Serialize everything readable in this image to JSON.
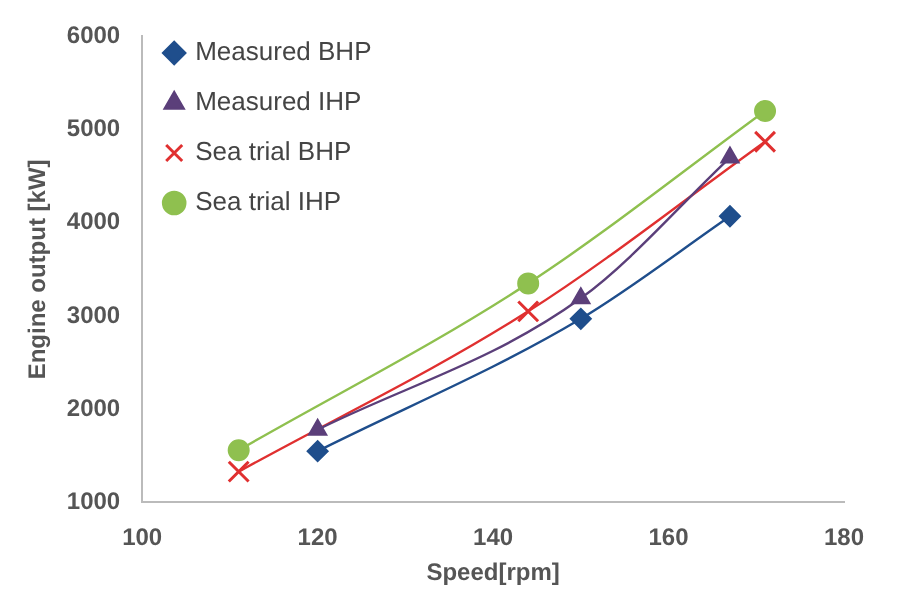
{
  "chart_data": {
    "type": "line",
    "xlabel": "Speed[rpm]",
    "ylabel": "Engine output [kW]",
    "xlim": [
      100,
      180
    ],
    "xticks": [
      100,
      120,
      140,
      160,
      180
    ],
    "ylim": [
      1000,
      6000
    ],
    "yticks": [
      1000,
      2000,
      3000,
      4000,
      5000,
      6000
    ],
    "grid": false,
    "legend": "top left",
    "series": [
      {
        "name": "Measured BHP",
        "color": "#1f4e8c",
        "marker": "diamond",
        "x": [
          120,
          150,
          167
        ],
        "values": [
          1550,
          2970,
          4070
        ]
      },
      {
        "name": "Measured IHP",
        "color": "#5b3f7a",
        "marker": "triangle",
        "x": [
          120,
          150,
          167
        ],
        "values": [
          1780,
          3190,
          4700
        ]
      },
      {
        "name": "Sea trial BHP",
        "color": "#e03030",
        "marker": "cross",
        "x": [
          111,
          144,
          171
        ],
        "values": [
          1330,
          3050,
          4870
        ]
      },
      {
        "name": "Sea trial IHP",
        "color": "#8fc04f",
        "marker": "circle",
        "x": [
          111,
          144,
          171
        ],
        "values": [
          1560,
          3350,
          5200
        ]
      }
    ]
  }
}
